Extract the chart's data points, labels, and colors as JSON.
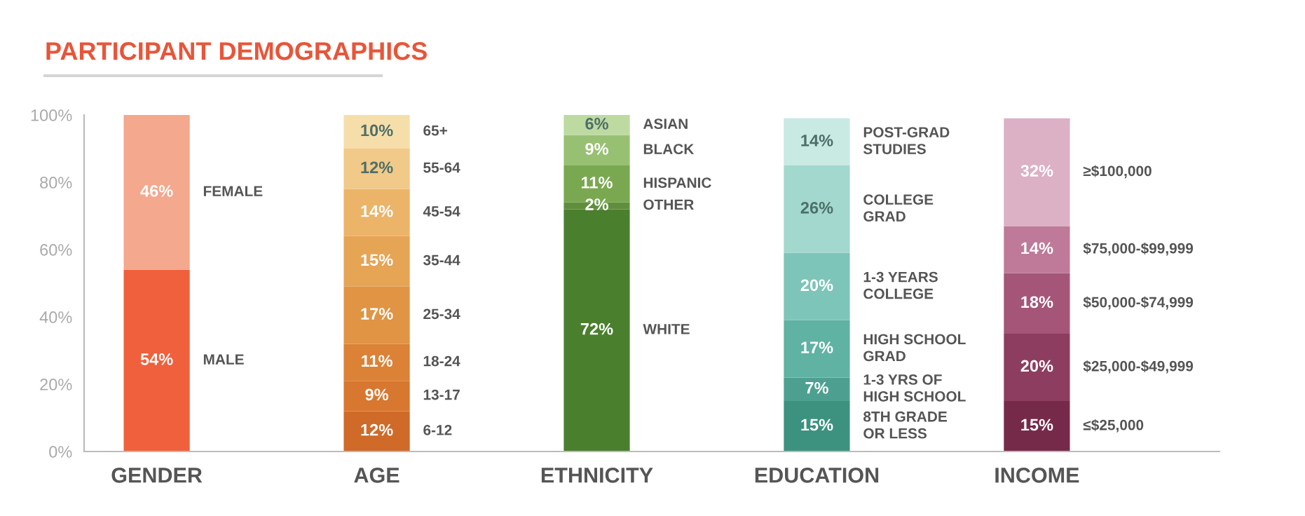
{
  "chart_data": {
    "type": "bar",
    "stacked": true,
    "title": "PARTICIPANT DEMOGRAPHICS",
    "categories": [
      "GENDER",
      "AGE",
      "ETHNICITY",
      "EDUCATION",
      "INCOME"
    ],
    "ylim": [
      0,
      100
    ],
    "yticks": [
      {
        "value": 0,
        "label": "0%"
      },
      {
        "value": 20,
        "label": "20%"
      },
      {
        "value": 40,
        "label": "40%"
      },
      {
        "value": 60,
        "label": "60%"
      },
      {
        "value": 80,
        "label": "80%"
      },
      {
        "value": 100,
        "label": "100%"
      }
    ],
    "grid": false,
    "legend": false,
    "series": [
      {
        "name": "MALE",
        "color": "#f0603c",
        "values": [
          54,
          null,
          null,
          null,
          null
        ],
        "value_labels": [
          "54%",
          null,
          null,
          null,
          null
        ]
      },
      {
        "name": "FEMALE",
        "color": "#f4a88d",
        "values": [
          46,
          null,
          null,
          null,
          null
        ],
        "value_labels": [
          "46%",
          null,
          null,
          null,
          null
        ]
      },
      {
        "name": "6-12",
        "color": "#cf6a28",
        "values": [
          null,
          12,
          null,
          null,
          null
        ],
        "value_labels": [
          null,
          "12%",
          null,
          null,
          null
        ]
      },
      {
        "name": "13-17",
        "color": "#d8772f",
        "values": [
          null,
          9,
          null,
          null,
          null
        ],
        "value_labels": [
          null,
          "9%",
          null,
          null,
          null
        ]
      },
      {
        "name": "18-24",
        "color": "#db8236",
        "values": [
          null,
          11,
          null,
          null,
          null
        ],
        "value_labels": [
          null,
          "11%",
          null,
          null,
          null
        ]
      },
      {
        "name": "25-34",
        "color": "#e09444",
        "values": [
          null,
          17,
          null,
          null,
          null
        ],
        "value_labels": [
          null,
          "17%",
          null,
          null,
          null
        ]
      },
      {
        "name": "35-44",
        "color": "#e6a455",
        "values": [
          null,
          15,
          null,
          null,
          null
        ],
        "value_labels": [
          null,
          "15%",
          null,
          null,
          null
        ]
      },
      {
        "name": "45-54",
        "color": "#ebb468",
        "values": [
          null,
          14,
          null,
          null,
          null
        ],
        "value_labels": [
          null,
          "14%",
          null,
          null,
          null
        ]
      },
      {
        "name": "55-64",
        "color": "#f1c988",
        "values": [
          null,
          12,
          null,
          null,
          null
        ],
        "value_labels": [
          null,
          "12%",
          null,
          null,
          null
        ]
      },
      {
        "name": "65+",
        "color": "#f6deaa",
        "values": [
          null,
          10,
          null,
          null,
          null
        ],
        "value_labels": [
          null,
          "10%",
          null,
          null,
          null
        ]
      },
      {
        "name": "WHITE",
        "color": "#4a7f2e",
        "values": [
          null,
          null,
          72,
          null,
          null
        ],
        "value_labels": [
          null,
          null,
          "72%",
          null,
          null
        ]
      },
      {
        "name": "OTHER",
        "color": "#5f8f3c",
        "values": [
          null,
          null,
          2,
          null,
          null
        ],
        "value_labels": [
          null,
          null,
          "2%",
          null,
          null
        ]
      },
      {
        "name": "HISPANIC",
        "color": "#79a851",
        "values": [
          null,
          null,
          11,
          null,
          null
        ],
        "value_labels": [
          null,
          null,
          "11%",
          null,
          null
        ]
      },
      {
        "name": "BLACK",
        "color": "#98c072",
        "values": [
          null,
          null,
          9,
          null,
          null
        ],
        "value_labels": [
          null,
          null,
          "9%",
          null,
          null
        ]
      },
      {
        "name": "ASIAN",
        "color": "#bddaa0",
        "values": [
          null,
          null,
          6,
          null,
          null
        ],
        "value_labels": [
          null,
          null,
          "6%",
          null,
          null
        ]
      },
      {
        "name": "8TH GRADE\nOR LESS",
        "color": "#3c927f",
        "values": [
          null,
          null,
          null,
          15,
          null
        ],
        "value_labels": [
          null,
          null,
          null,
          "15%",
          null
        ]
      },
      {
        "name": "1-3 YRS OF\nHIGH SCHOOL",
        "color": "#4da090",
        "values": [
          null,
          null,
          null,
          7,
          null
        ],
        "value_labels": [
          null,
          null,
          null,
          "7%",
          null
        ]
      },
      {
        "name": "HIGH SCHOOL\nGRAD",
        "color": "#60b2a2",
        "values": [
          null,
          null,
          null,
          17,
          null
        ],
        "value_labels": [
          null,
          null,
          null,
          "17%",
          null
        ]
      },
      {
        "name": "1-3 YEARS\nCOLLEGE",
        "color": "#7dc5b8",
        "values": [
          null,
          null,
          null,
          20,
          null
        ],
        "value_labels": [
          null,
          null,
          null,
          "20%",
          null
        ]
      },
      {
        "name": "COLLEGE\nGRAD",
        "color": "#a2d8ce",
        "values": [
          null,
          null,
          null,
          26,
          null
        ],
        "value_labels": [
          null,
          null,
          null,
          "26%",
          null
        ]
      },
      {
        "name": "POST-GRAD\nSTUDIES",
        "color": "#c9e9e3",
        "values": [
          null,
          null,
          null,
          14,
          null
        ],
        "value_labels": [
          null,
          null,
          null,
          "14%",
          null
        ]
      },
      {
        "name": "≤$25,000",
        "color": "#762a4a",
        "values": [
          null,
          null,
          null,
          null,
          15
        ],
        "value_labels": [
          null,
          null,
          null,
          null,
          "15%"
        ]
      },
      {
        "name": "$25,000-$49,999",
        "color": "#8d3d60",
        "values": [
          null,
          null,
          null,
          null,
          20
        ],
        "value_labels": [
          null,
          null,
          null,
          null,
          "20%"
        ]
      },
      {
        "name": "$50,000-$74,999",
        "color": "#a55578",
        "values": [
          null,
          null,
          null,
          null,
          18
        ],
        "value_labels": [
          null,
          null,
          null,
          null,
          "18%"
        ]
      },
      {
        "name": "$75,000-$99,999",
        "color": "#be7a98",
        "values": [
          null,
          null,
          null,
          null,
          14
        ],
        "value_labels": [
          null,
          null,
          null,
          null,
          "14%"
        ]
      },
      {
        "name": "≥$100,000",
        "color": "#dcb0c5",
        "values": [
          null,
          null,
          null,
          null,
          32
        ],
        "value_labels": [
          null,
          null,
          null,
          null,
          "32%"
        ]
      }
    ]
  }
}
